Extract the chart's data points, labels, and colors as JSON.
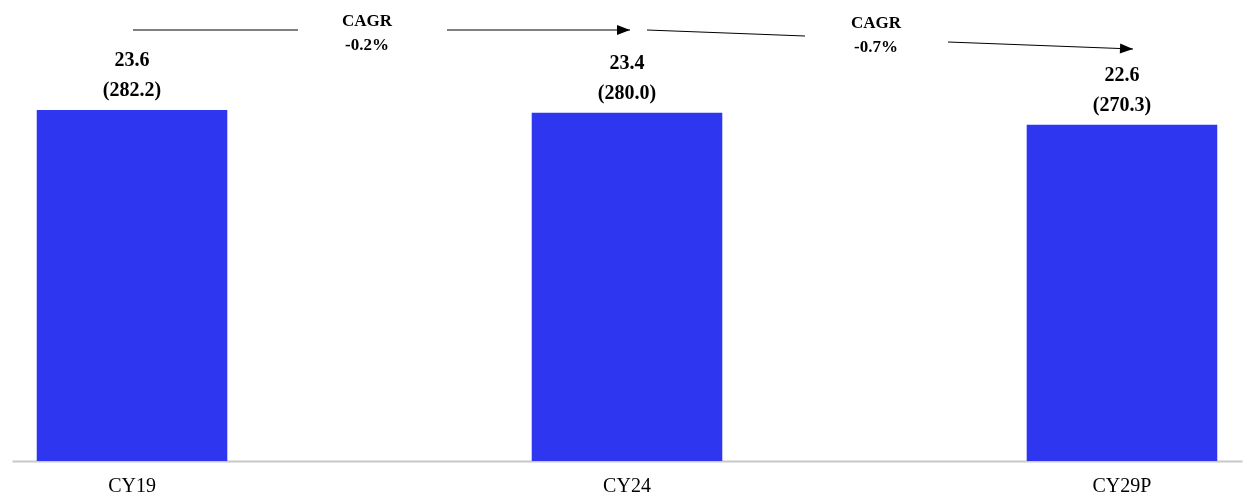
{
  "chart_data": {
    "type": "bar",
    "categories": [
      "CY19",
      "CY24",
      "CY29P"
    ],
    "values": [
      23.6,
      23.4,
      22.6
    ],
    "value_labels": [
      "23.6\n(282.2)",
      "23.4\n(280.0)",
      "22.6\n(270.3)"
    ],
    "color": "#2e37ef",
    "tick_labels": "x",
    "annotations": [
      "CAGR\n-0.2%",
      "CAGR\n-0.7%"
    ]
  }
}
